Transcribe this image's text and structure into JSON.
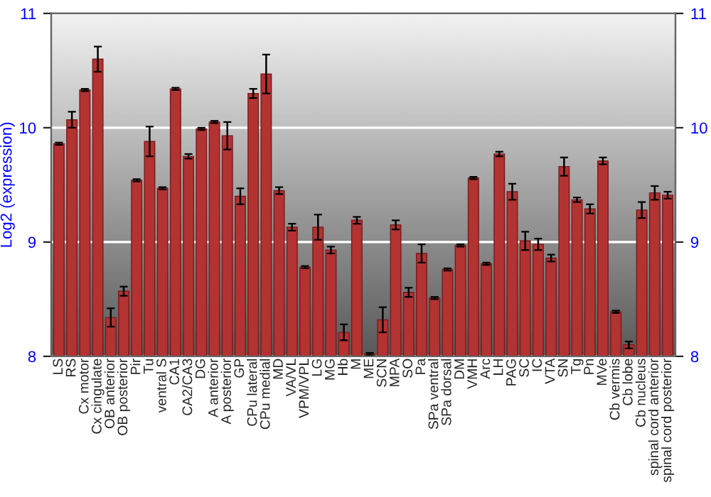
{
  "chart_data": {
    "type": "bar",
    "ylabel": "Log2 (expression)",
    "categories": [
      "LS",
      "RS",
      "Cx motor",
      "Cx cingulate",
      "OB anterior",
      "OB posterior",
      "Pir",
      "Tu",
      "ventral S",
      "CA1",
      "CA2/CA3",
      "DG",
      "A anterior",
      "A posterior",
      "GP",
      "CPu lateral",
      "CPu medial",
      "MD",
      "VA/VL",
      "VPM/VPL",
      "LG",
      "MG",
      "Hb",
      "M",
      "ME",
      "SCN",
      "MPA",
      "SO",
      "Pa",
      "SPa ventral",
      "SPa dorsal",
      "DM",
      "VMH",
      "Arc",
      "LH",
      "PAG",
      "SC",
      "IC",
      "VTA",
      "SN",
      "Tg",
      "Pn",
      "MVe",
      "Cb vermis",
      "Cb lobe",
      "Cb nucleus",
      "spinal cord anterior",
      "spinal cord posterior"
    ],
    "values": [
      9.86,
      10.07,
      10.33,
      10.6,
      8.34,
      8.57,
      9.54,
      9.88,
      9.47,
      10.34,
      9.75,
      9.99,
      10.05,
      9.93,
      9.4,
      10.3,
      10.47,
      9.45,
      9.13,
      8.78,
      9.13,
      8.93,
      8.21,
      9.19,
      8.02,
      8.32,
      9.15,
      8.56,
      8.9,
      8.51,
      8.76,
      8.97,
      9.56,
      8.81,
      9.77,
      9.44,
      9.01,
      8.98,
      8.86,
      9.66,
      9.37,
      9.29,
      9.71,
      8.39,
      8.1,
      9.28,
      9.43,
      9.41
    ],
    "errors": [
      0.01,
      0.07,
      0.01,
      0.11,
      0.08,
      0.04,
      0.01,
      0.13,
      0.01,
      0.01,
      0.02,
      0.01,
      0.01,
      0.12,
      0.07,
      0.04,
      0.17,
      0.03,
      0.03,
      0.01,
      0.11,
      0.03,
      0.07,
      0.03,
      0.01,
      0.11,
      0.04,
      0.04,
      0.08,
      0.01,
      0.01,
      0.01,
      0.01,
      0.01,
      0.02,
      0.07,
      0.08,
      0.05,
      0.03,
      0.08,
      0.02,
      0.04,
      0.03,
      0.01,
      0.03,
      0.07,
      0.06,
      0.03
    ],
    "color": "#b33232",
    "ylim": [
      8,
      11
    ],
    "yticks": [
      8,
      9,
      10,
      11
    ],
    "y2lim": [
      8,
      11
    ],
    "y2ticks": [
      8,
      9,
      10,
      11
    ],
    "grid": "y",
    "legend": false
  }
}
